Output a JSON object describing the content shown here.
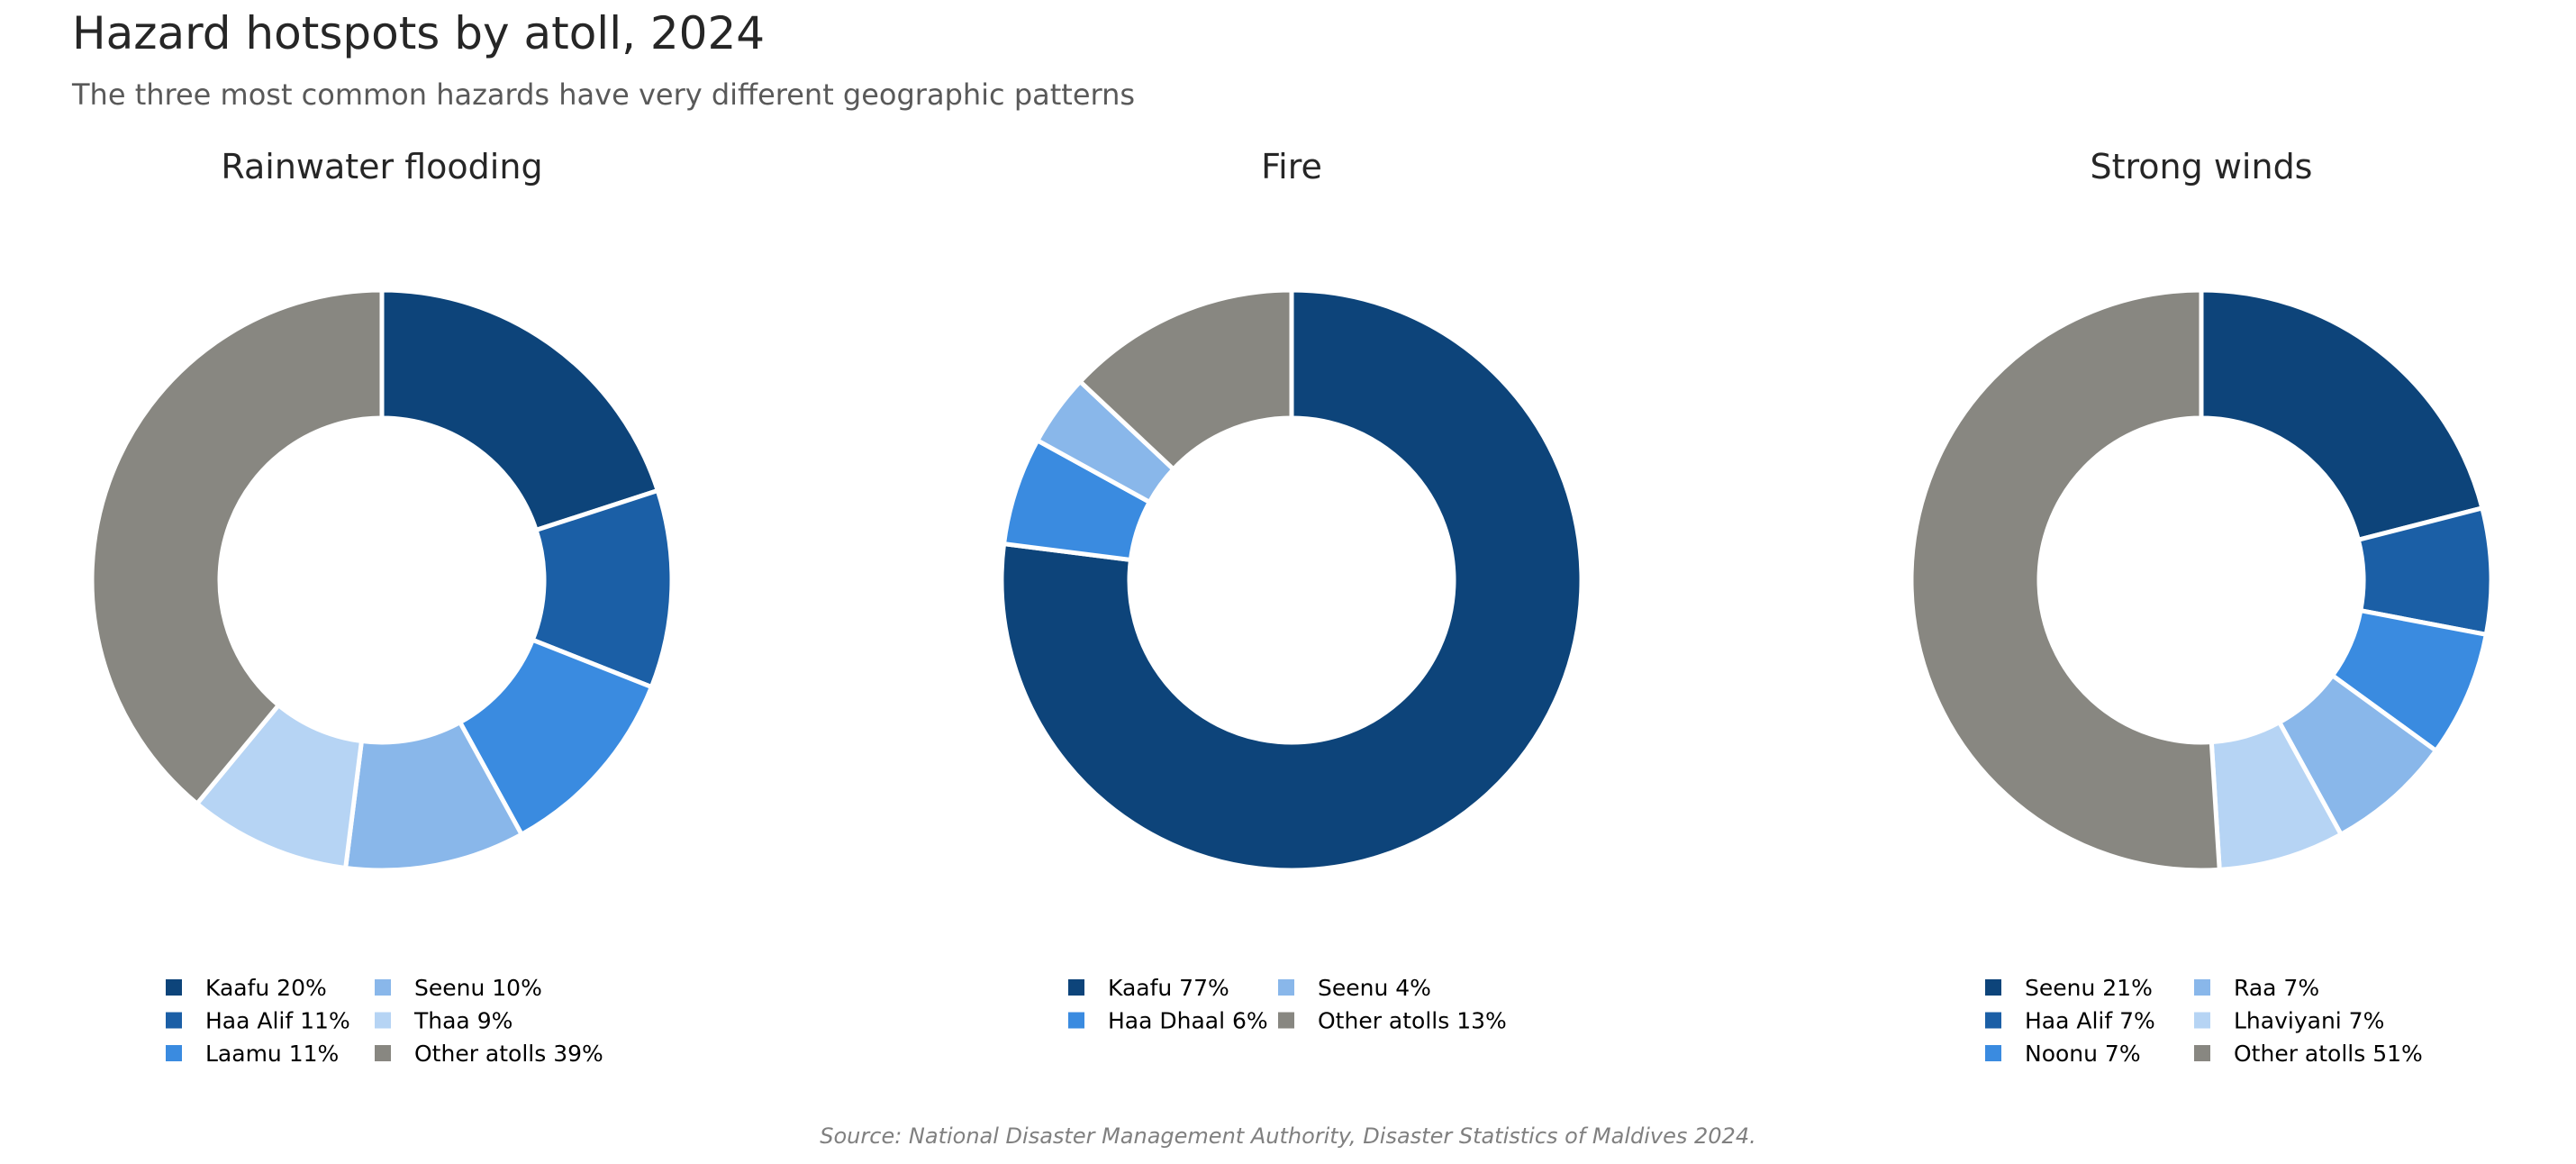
{
  "title": "Hazard hotspots by atoll, 2024",
  "subtitle": "The three most common hazards have very different geographic patterns",
  "source": "Source: National Disaster Management Authority, Disaster Statistics of Maldives 2024.",
  "chart_data": [
    {
      "type": "pie",
      "title": "Rainwater flooding",
      "legend_position": "bottom",
      "slices": [
        {
          "label": "Kaafu 20%",
          "value": 20,
          "color": "#0d447a"
        },
        {
          "label": "Haa Alif 11%",
          "value": 11,
          "color": "#1b5fa6"
        },
        {
          "label": "Laamu 11%",
          "value": 11,
          "color": "#3a8be0"
        },
        {
          "label": "Seenu 10%",
          "value": 10,
          "color": "#89b7ea"
        },
        {
          "label": "Thaa 9%",
          "value": 9,
          "color": "#b6d4f4"
        },
        {
          "label": "Other atolls 39%",
          "value": 39,
          "color": "#888781"
        }
      ]
    },
    {
      "type": "pie",
      "title": "Fire",
      "legend_position": "bottom",
      "slices": [
        {
          "label": "Kaafu 77%",
          "value": 77,
          "color": "#0d447a"
        },
        {
          "label": "Haa Dhaal 6%",
          "value": 6,
          "color": "#3a8be0"
        },
        {
          "label": "Seenu 4%",
          "value": 4,
          "color": "#89b7ea"
        },
        {
          "label": "Other atolls 13%",
          "value": 13,
          "color": "#888781"
        }
      ]
    },
    {
      "type": "pie",
      "title": "Strong winds",
      "legend_position": "bottom",
      "slices": [
        {
          "label": "Seenu 21%",
          "value": 21,
          "color": "#0d447a"
        },
        {
          "label": "Haa Alif 7%",
          "value": 7,
          "color": "#1b5fa6"
        },
        {
          "label": "Noonu 7%",
          "value": 7,
          "color": "#3a8be0"
        },
        {
          "label": "Raa 7%",
          "value": 7,
          "color": "#89b7ea"
        },
        {
          "label": "Lhaviyani 7%",
          "value": 7,
          "color": "#b6d4f4"
        },
        {
          "label": "Other atolls 51%",
          "value": 51,
          "color": "#888781"
        }
      ]
    }
  ]
}
